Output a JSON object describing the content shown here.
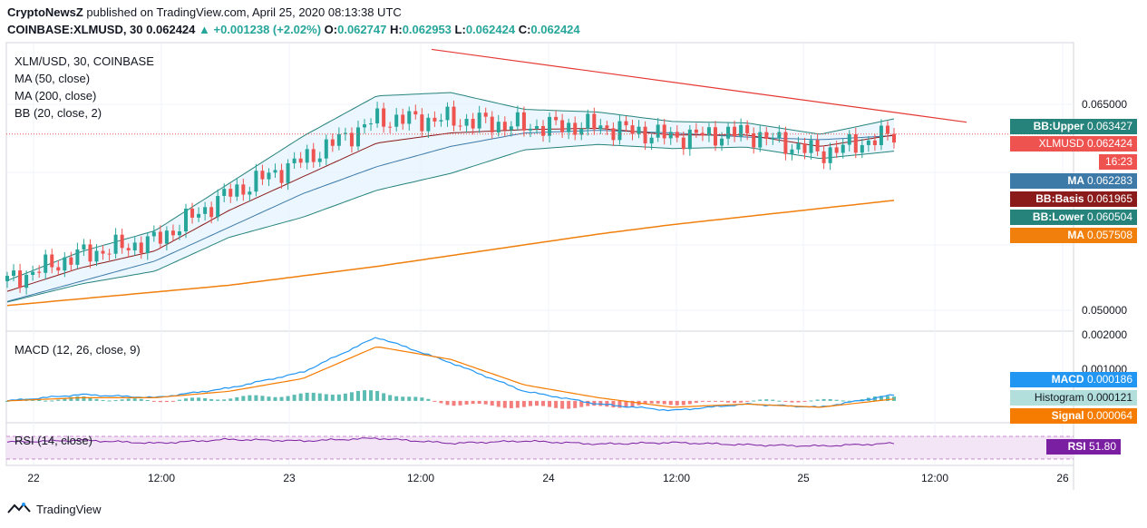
{
  "header": {
    "line1_author": "CryptoNewsZ",
    "line1_text": " published on TradingView.com, April 25, 2020 08:13:38 UTC",
    "symbol": "COINBASE:XLMUSD, 30",
    "last": "0.062424",
    "change": "▲ +0.001238 (+2.02%)",
    "o_label": "O:",
    "o": "0.062747",
    "h_label": "H:",
    "h": "0.062953",
    "l_label": "L:",
    "l": "0.062424",
    "c_label": "C:",
    "c": "0.062424"
  },
  "legend_main": [
    "XLM/USD, 30, COINBASE",
    "MA (50, close)",
    "MA (200, close)",
    "BB (20, close, 2)"
  ],
  "legend_macd": "MACD (12, 26, close, 9)",
  "legend_rsi": "RSI (14, close)",
  "price_axis": [
    "0.065000",
    "0.050000"
  ],
  "macd_axis": [
    "0.002000",
    "0.001000"
  ],
  "time_axis": [
    "22",
    "12:00",
    "23",
    "12:00",
    "24",
    "12:00",
    "25",
    "12:00",
    "26"
  ],
  "tags": {
    "bb_upper": {
      "label": "BB:Upper",
      "value": "0.063427",
      "color": "#26837c"
    },
    "xlmusd": {
      "label": "XLMUSD",
      "value": "0.062424",
      "color": "#ef5350"
    },
    "countdown": {
      "value": "16:23",
      "color": "#ef5350"
    },
    "ma50": {
      "label": "MA",
      "value": "0.062283",
      "color": "#3d7aa8"
    },
    "bb_basis": {
      "label": "BB:Basis",
      "value": "0.061965",
      "color": "#8b1a1a"
    },
    "bb_lower": {
      "label": "BB:Lower",
      "value": "0.060504",
      "color": "#26837c"
    },
    "ma200": {
      "label": "MA",
      "value": "0.057508",
      "color": "#f07f0c"
    },
    "macd": {
      "label": "MACD",
      "value": "0.000186",
      "color": "#2196f3"
    },
    "histogram": {
      "label": "Histogram",
      "value": "0.000121",
      "color": "#b2dfdb"
    },
    "signal": {
      "label": "Signal",
      "value": "0.000064",
      "color": "#f57c00"
    },
    "rsi": {
      "label": "RSI",
      "value": "51.80",
      "color": "#7b1fa2"
    }
  },
  "footer": {
    "brand": "TradingView"
  },
  "chart_data": {
    "type": "line",
    "title": "XLM/USD, 30, COINBASE",
    "x": [
      "Apr 22 00:00",
      "Apr 22 12:00",
      "Apr 23 00:00",
      "Apr 23 06:00",
      "Apr 23 12:00",
      "Apr 23 14:00",
      "Apr 23 18:00",
      "Apr 24 00:00",
      "Apr 24 06:00",
      "Apr 24 12:00",
      "Apr 24 18:00",
      "Apr 25 00:00",
      "Apr 25 06:00"
    ],
    "series": [
      {
        "name": "XLMUSD",
        "values": [
          0.0515,
          0.0535,
          0.0545,
          0.058,
          0.0605,
          0.0635,
          0.0635,
          0.063,
          0.063,
          0.0622,
          0.0625,
          0.061,
          0.0624
        ]
      },
      {
        "name": "MA (50, close)",
        "values": [
          0.05,
          0.0515,
          0.053,
          0.0555,
          0.058,
          0.06,
          0.0615,
          0.0625,
          0.0627,
          0.0625,
          0.0622,
          0.062,
          0.0623
        ]
      },
      {
        "name": "MA (200, close)",
        "values": [
          0.0497,
          0.0502,
          0.0507,
          0.0512,
          0.0519,
          0.0526,
          0.0534,
          0.0542,
          0.055,
          0.0557,
          0.0563,
          0.0569,
          0.0575
        ]
      }
    ],
    "trendline": {
      "from": [
        "Apr 23 14:00",
        0.0687
      ],
      "to": [
        "Apr 25 12:00",
        0.0633
      ]
    },
    "ylim": [
      0.048,
      0.069
    ],
    "last_price": 0.062424,
    "macd": {
      "ylim": [
        -0.0006,
        0.0021
      ],
      "macd": [
        0.0,
        0.0002,
        0.0001,
        0.0004,
        0.0009,
        0.002,
        0.0012,
        0.0003,
        -0.0001,
        -0.0003,
        -0.0001,
        -0.0002,
        0.00019
      ],
      "signal": [
        0.0,
        0.0001,
        0.0001,
        0.0003,
        0.0007,
        0.0017,
        0.0013,
        0.0005,
        0.0001,
        -0.0002,
        -0.0001,
        -0.0002,
        6e-05
      ]
    },
    "rsi": {
      "ylim": [
        0,
        100
      ],
      "values": [
        55,
        60,
        52,
        62,
        58,
        65,
        52,
        58,
        50,
        54,
        48,
        45,
        51.8
      ]
    }
  }
}
